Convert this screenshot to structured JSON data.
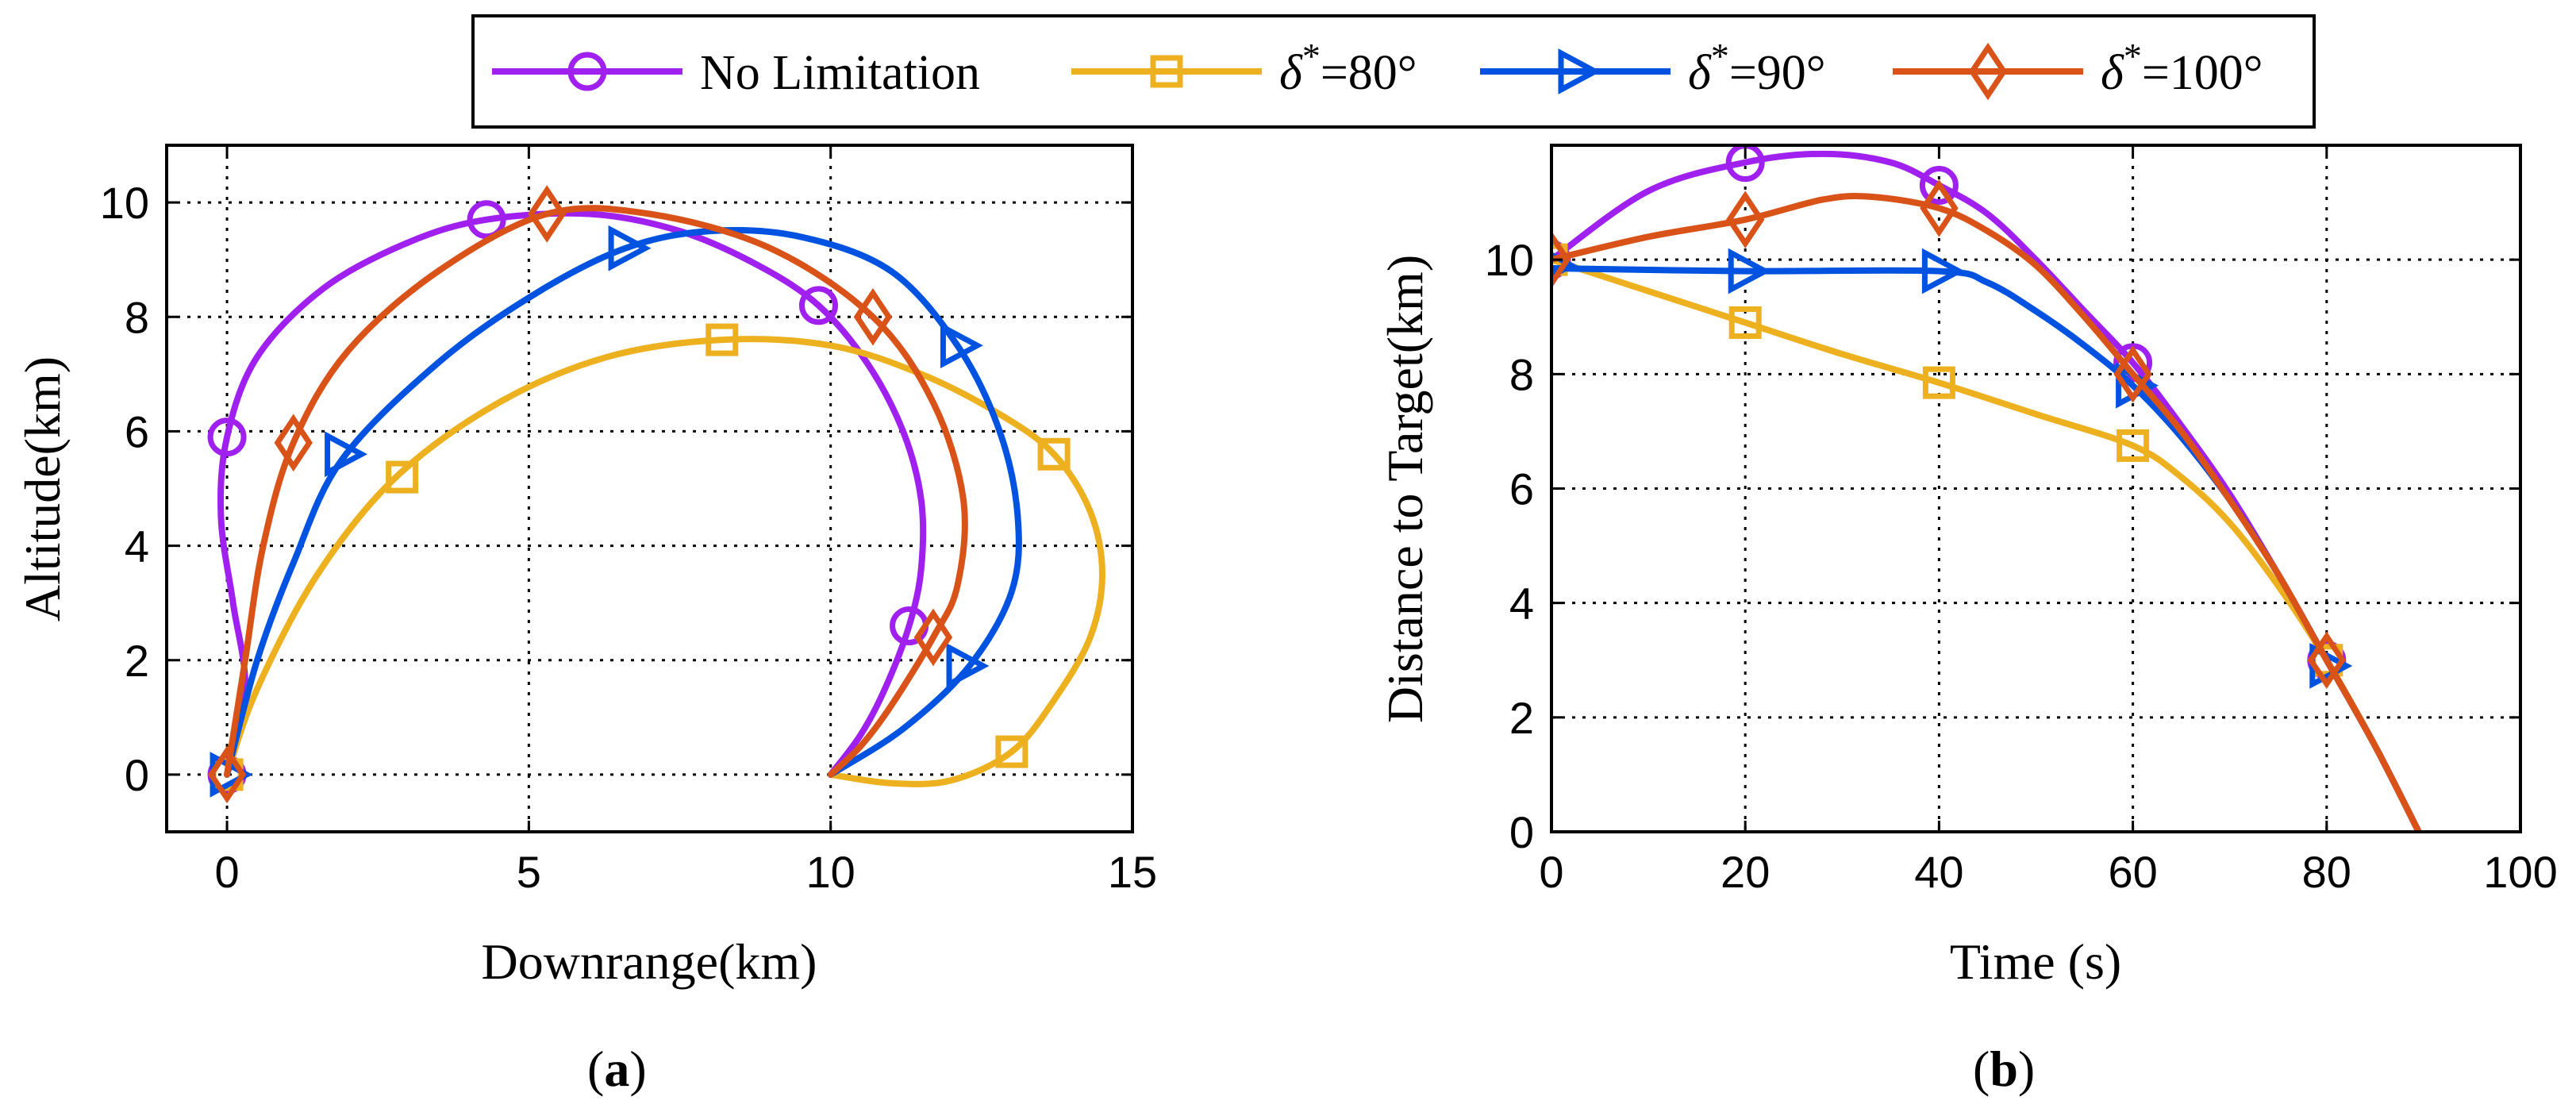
{
  "legend": {
    "entries": [
      {
        "name": "No Limitation",
        "prefix": "",
        "sup": "",
        "suffix": "",
        "color": "#A020F0",
        "marker": "circle"
      },
      {
        "name": "δ*=80°",
        "prefix": "δ",
        "sup": "*",
        "suffix": "=80°",
        "color": "#EDB120",
        "marker": "square"
      },
      {
        "name": "δ*=90°",
        "prefix": "δ",
        "sup": "*",
        "suffix": "=90°",
        "color": "#0052E0",
        "marker": "triangle-right"
      },
      {
        "name": "δ*=100°",
        "prefix": "δ",
        "sup": "*",
        "suffix": "=100°",
        "color": "#D95319",
        "marker": "diamond"
      }
    ]
  },
  "chart_data": [
    {
      "id": "a",
      "type": "line",
      "panel_label": "(a)",
      "panel_letter": "a",
      "xlabel": "Downrange(km)",
      "ylabel": "Altitude(km)",
      "xlim": [
        -1,
        15
      ],
      "ylim": [
        -1,
        11
      ],
      "xticks": [
        0,
        5,
        10,
        15
      ],
      "yticks": [
        0,
        2,
        4,
        6,
        8,
        10
      ],
      "grid": true,
      "series": [
        {
          "name": "No Limitation",
          "points": [
            [
              0,
              0
            ],
            [
              0.3,
              1.5
            ],
            [
              0.1,
              3
            ],
            [
              -0.1,
              4.5
            ],
            [
              0,
              5.9
            ],
            [
              0.5,
              7.3
            ],
            [
              1.6,
              8.5
            ],
            [
              3,
              9.3
            ],
            [
              4.3,
              9.7
            ],
            [
              6,
              9.8
            ],
            [
              7.5,
              9.5
            ],
            [
              8.8,
              8.9
            ],
            [
              9.8,
              8.2
            ],
            [
              10.6,
              7.2
            ],
            [
              11.2,
              6
            ],
            [
              11.5,
              4.8
            ],
            [
              11.5,
              3.6
            ],
            [
              11.3,
              2.6
            ],
            [
              10.9,
              1.5
            ],
            [
              10.5,
              0.7
            ],
            [
              10,
              0
            ]
          ],
          "markers": [
            [
              0,
              0
            ],
            [
              0,
              5.9
            ],
            [
              4.3,
              9.7
            ],
            [
              9.8,
              8.2
            ],
            [
              11.3,
              2.6
            ]
          ]
        },
        {
          "name": "δ*=80°",
          "points": [
            [
              0,
              0
            ],
            [
              0.5,
              1.5
            ],
            [
              1.5,
              3.5
            ],
            [
              2.8,
              5.2
            ],
            [
              4.5,
              6.5
            ],
            [
              6.3,
              7.3
            ],
            [
              8.2,
              7.6
            ],
            [
              10,
              7.5
            ],
            [
              11.5,
              7
            ],
            [
              12.8,
              6.3
            ],
            [
              13.7,
              5.6
            ],
            [
              14.3,
              4.6
            ],
            [
              14.5,
              3.5
            ],
            [
              14.3,
              2.4
            ],
            [
              13.7,
              1.3
            ],
            [
              13,
              0.4
            ],
            [
              12,
              -0.1
            ],
            [
              11,
              -0.15
            ],
            [
              10,
              0
            ]
          ],
          "markers": [
            [
              0,
              0
            ],
            [
              2.9,
              5.2
            ],
            [
              8.2,
              7.6
            ],
            [
              13.7,
              5.6
            ],
            [
              13,
              0.4
            ]
          ]
        },
        {
          "name": "δ*=90°",
          "points": [
            [
              0,
              0
            ],
            [
              0.5,
              2
            ],
            [
              1.1,
              3.7
            ],
            [
              1.9,
              5.5
            ],
            [
              3.5,
              7.2
            ],
            [
              5.1,
              8.4
            ],
            [
              6.6,
              9.2
            ],
            [
              8,
              9.5
            ],
            [
              9.5,
              9.4
            ],
            [
              11,
              8.8
            ],
            [
              12.1,
              7.5
            ],
            [
              12.8,
              6
            ],
            [
              13.1,
              4.5
            ],
            [
              13,
              3.2
            ],
            [
              12.3,
              1.9
            ],
            [
              11.2,
              0.8
            ],
            [
              10,
              0
            ]
          ],
          "markers": [
            [
              0,
              0
            ],
            [
              1.9,
              5.6
            ],
            [
              6.6,
              9.2
            ],
            [
              12.1,
              7.5
            ],
            [
              12.2,
              1.9
            ]
          ]
        },
        {
          "name": "δ*=100°",
          "points": [
            [
              0,
              0
            ],
            [
              0.3,
              2
            ],
            [
              0.6,
              4
            ],
            [
              1.1,
              5.8
            ],
            [
              2,
              7.4
            ],
            [
              3.5,
              8.8
            ],
            [
              5.3,
              9.8
            ],
            [
              7,
              9.8
            ],
            [
              9,
              9.2
            ],
            [
              10.7,
              8
            ],
            [
              11.7,
              6.5
            ],
            [
              12.2,
              4.8
            ],
            [
              12.1,
              3.3
            ],
            [
              11.7,
              2.4
            ],
            [
              11,
              1.2
            ],
            [
              10.5,
              0.5
            ],
            [
              10,
              0
            ]
          ],
          "markers": [
            [
              0,
              0
            ],
            [
              1.1,
              5.8
            ],
            [
              5.3,
              9.8
            ],
            [
              10.7,
              8
            ],
            [
              11.7,
              2.4
            ]
          ]
        }
      ]
    },
    {
      "id": "b",
      "type": "line",
      "panel_label": "(b)",
      "panel_letter": "b",
      "xlabel": "Time (s)",
      "ylabel": "Distance to Target(km)",
      "xlim": [
        0,
        100
      ],
      "ylim": [
        0,
        12
      ],
      "xticks": [
        0,
        20,
        40,
        60,
        80,
        100
      ],
      "yticks": [
        0,
        2,
        4,
        6,
        8,
        10
      ],
      "grid": true,
      "series": [
        {
          "name": "No Limitation",
          "points": [
            [
              0,
              10
            ],
            [
              10,
              11.2
            ],
            [
              20,
              11.7
            ],
            [
              28,
              11.85
            ],
            [
              35,
              11.7
            ],
            [
              40,
              11.3
            ],
            [
              45,
              10.8
            ],
            [
              50,
              10
            ],
            [
              55,
              9.1
            ],
            [
              60,
              8.2
            ],
            [
              65,
              7.1
            ],
            [
              70,
              5.9
            ],
            [
              75,
              4.5
            ],
            [
              80,
              3
            ],
            [
              85,
              1.5
            ],
            [
              89.5,
              0
            ]
          ],
          "markers": [
            [
              0,
              10
            ],
            [
              20,
              11.7
            ],
            [
              40,
              11.3
            ],
            [
              60,
              8.2
            ],
            [
              80,
              3
            ]
          ]
        },
        {
          "name": "δ*=80°",
          "points": [
            [
              0,
              10
            ],
            [
              10,
              9.45
            ],
            [
              20,
              8.9
            ],
            [
              30,
              8.35
            ],
            [
              40,
              7.85
            ],
            [
              50,
              7.3
            ],
            [
              60,
              6.75
            ],
            [
              65,
              6.2
            ],
            [
              70,
              5.4
            ],
            [
              75,
              4.3
            ],
            [
              80,
              3
            ],
            [
              85,
              1.5
            ],
            [
              89.5,
              0
            ]
          ],
          "markers": [
            [
              0,
              10
            ],
            [
              20,
              8.9
            ],
            [
              40,
              7.85
            ],
            [
              60,
              6.75
            ],
            [
              80,
              3
            ]
          ]
        },
        {
          "name": "δ*=90°",
          "points": [
            [
              0,
              9.85
            ],
            [
              20,
              9.8
            ],
            [
              40,
              9.8
            ],
            [
              45,
              9.6
            ],
            [
              50,
              9.1
            ],
            [
              55,
              8.5
            ],
            [
              60,
              7.8
            ],
            [
              65,
              6.9
            ],
            [
              70,
              5.8
            ],
            [
              75,
              4.5
            ],
            [
              80,
              3
            ],
            [
              85,
              1.5
            ],
            [
              89.5,
              0
            ]
          ],
          "markers": [
            [
              0,
              9.9
            ],
            [
              20,
              9.8
            ],
            [
              40,
              9.8
            ],
            [
              60,
              7.8
            ],
            [
              80,
              2.9
            ]
          ]
        },
        {
          "name": "δ*=100°",
          "points": [
            [
              0,
              10
            ],
            [
              10,
              10.4
            ],
            [
              20,
              10.7
            ],
            [
              28,
              11.05
            ],
            [
              33,
              11.1
            ],
            [
              40,
              10.9
            ],
            [
              45,
              10.5
            ],
            [
              50,
              9.9
            ],
            [
              55,
              9
            ],
            [
              60,
              8
            ],
            [
              65,
              7
            ],
            [
              70,
              5.8
            ],
            [
              75,
              4.5
            ],
            [
              80,
              3
            ],
            [
              85,
              1.5
            ],
            [
              89.5,
              0
            ]
          ],
          "markers": [
            [
              0,
              10
            ],
            [
              20,
              10.7
            ],
            [
              40,
              10.9
            ],
            [
              60,
              8
            ],
            [
              80,
              3
            ]
          ]
        }
      ]
    }
  ]
}
